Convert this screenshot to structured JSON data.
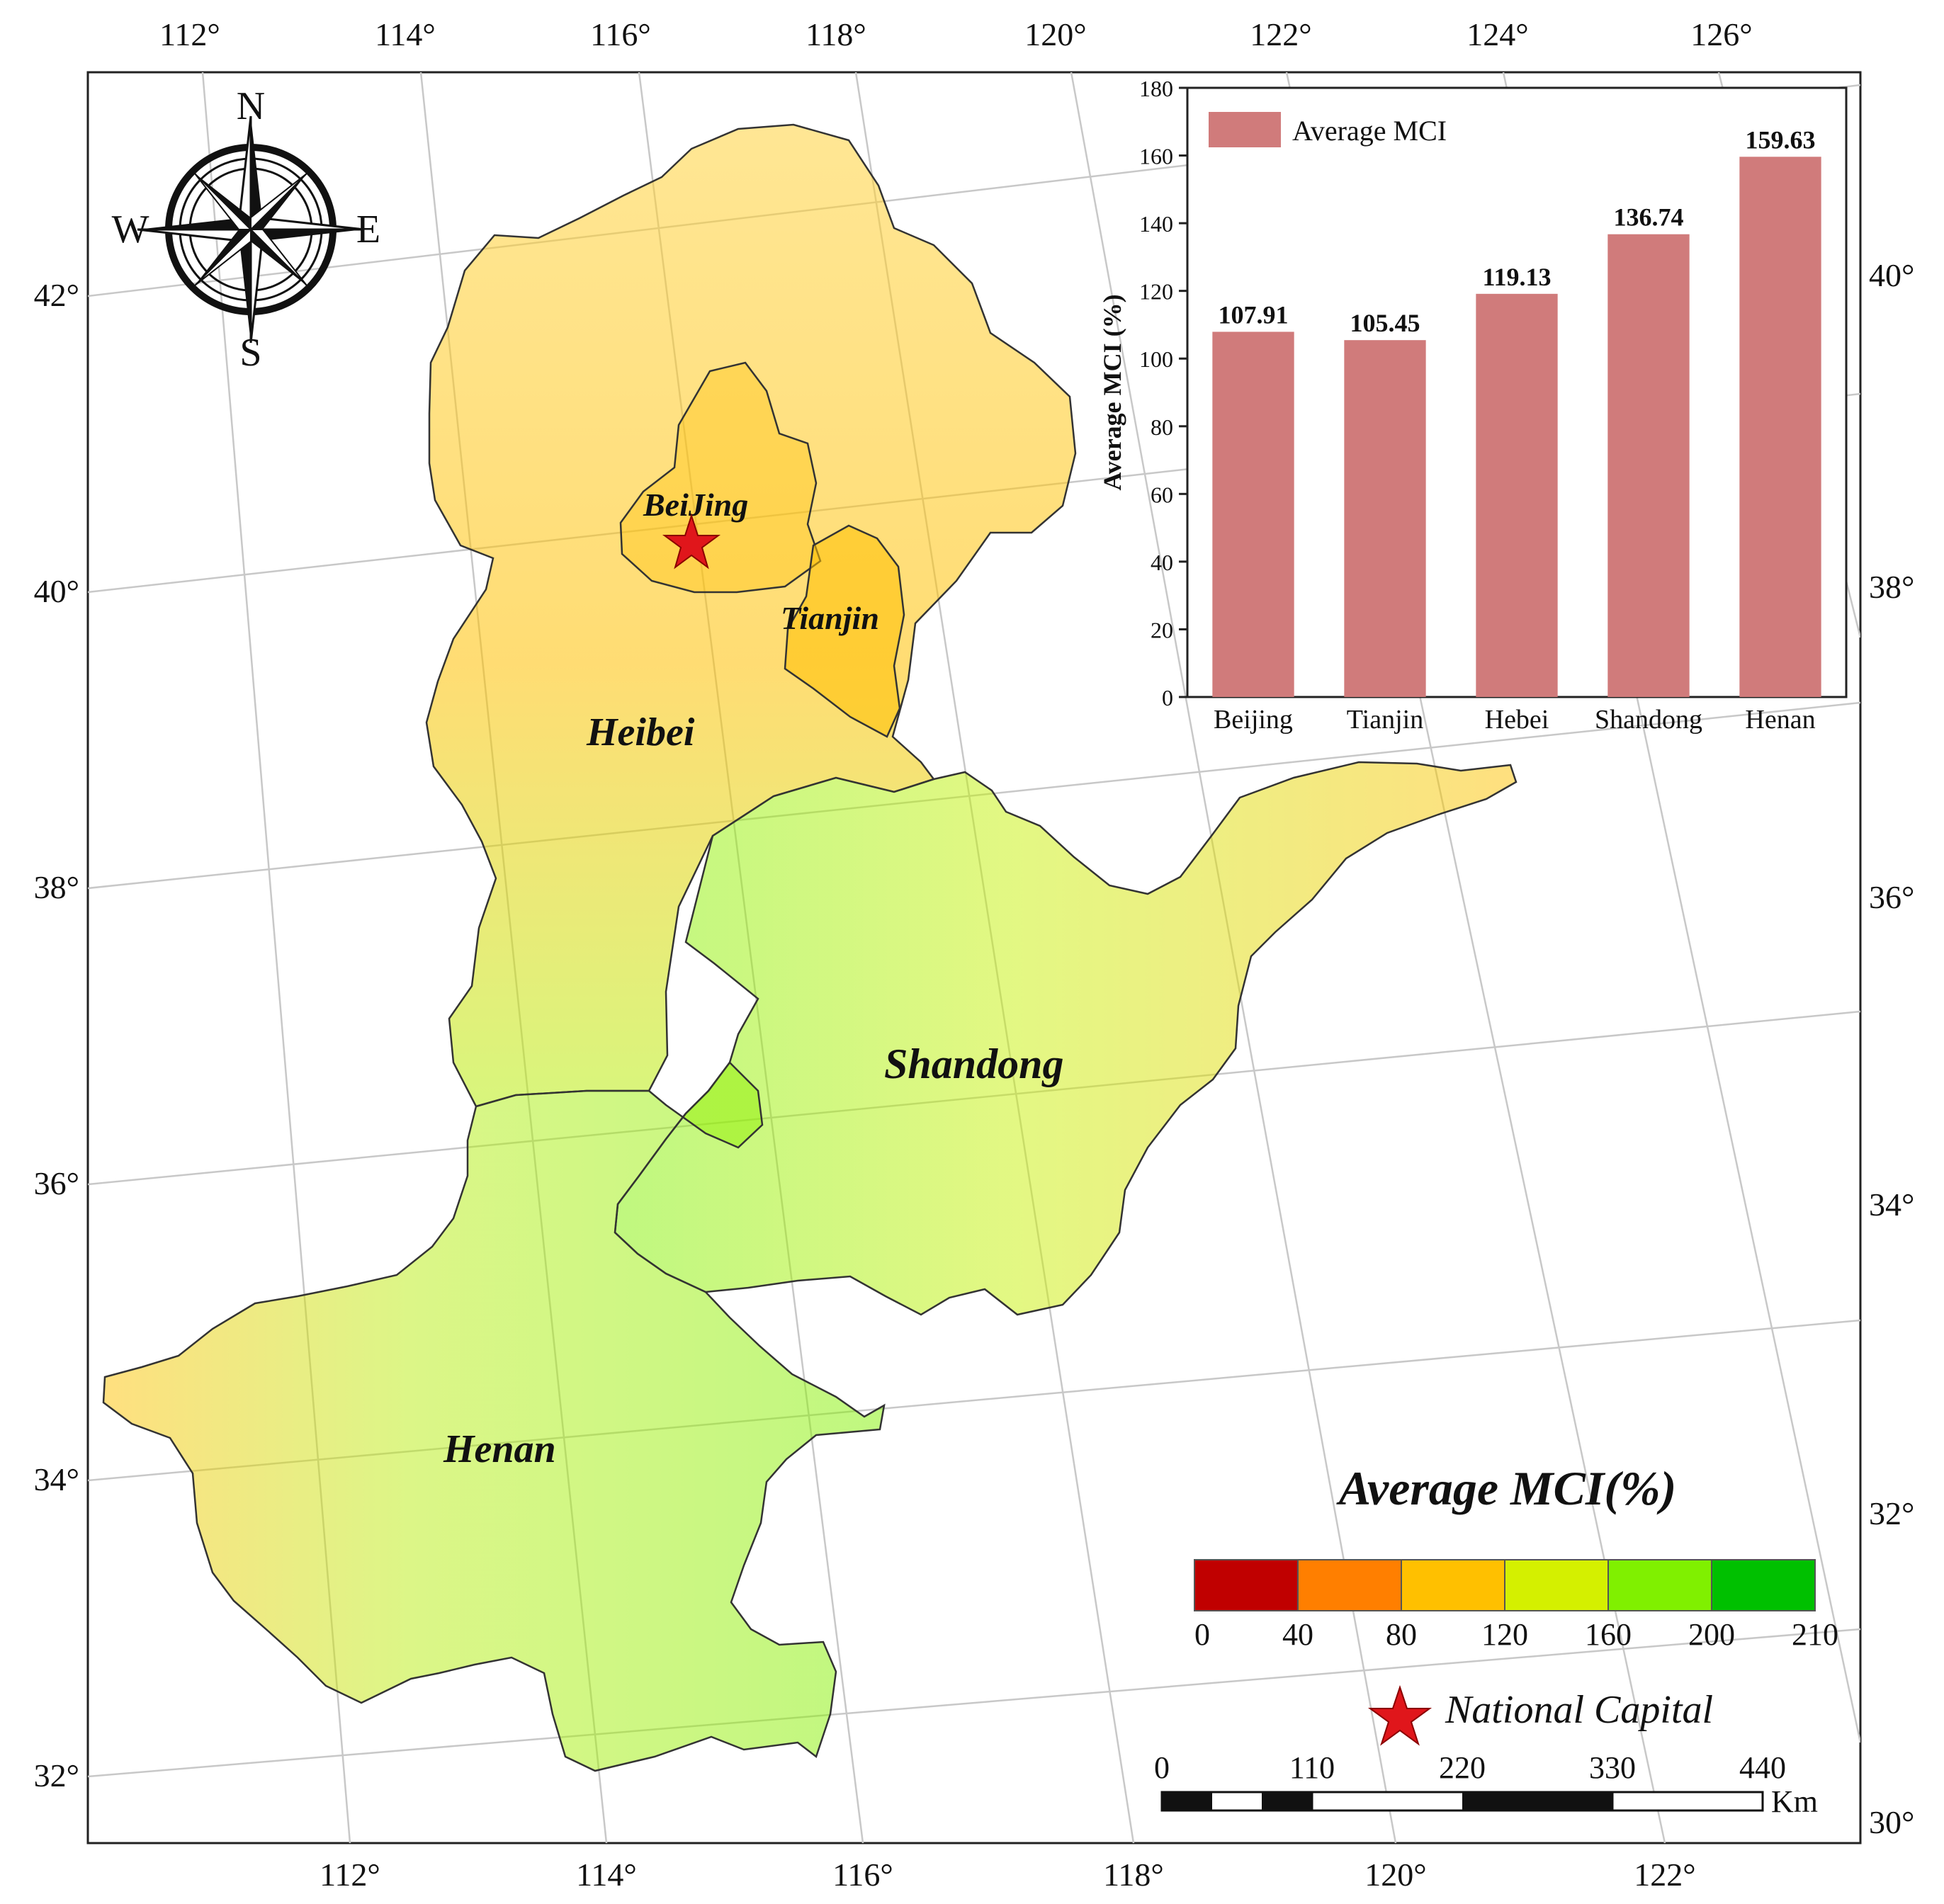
{
  "compass": {
    "n": "N",
    "s": "S",
    "e": "E",
    "w": "W"
  },
  "top_ticks": [
    "112°",
    "114°",
    "116°",
    "118°",
    "120°",
    "122°",
    "124°",
    "126°"
  ],
  "bottom_ticks": [
    "112°",
    "114°",
    "116°",
    "118°",
    "120°",
    "122°"
  ],
  "left_ticks": [
    "42°",
    "40°",
    "38°",
    "36°",
    "34°",
    "32°"
  ],
  "right_ticks": [
    "40°",
    "38°",
    "36°",
    "34°",
    "32°",
    "30°"
  ],
  "provinces": {
    "beijing": "BeiJing",
    "tianjin": "Tianjin",
    "hebei": "Heibei",
    "shandong": "Shandong",
    "henan": "Henan"
  },
  "legend": {
    "title": "Average MCI(%)",
    "class_colors": [
      "#c00000",
      "#ff7f00",
      "#ffc000",
      "#d4f000",
      "#80f000",
      "#00c000"
    ],
    "break_labels": [
      "0",
      "40",
      "80",
      "120",
      "160",
      "200",
      "210"
    ],
    "capital_label": "National Capital"
  },
  "scale_bar": {
    "labels": [
      "0",
      "110",
      "220",
      "330",
      "440"
    ],
    "unit": "Km"
  },
  "colors": {
    "bar": "#d07b7b",
    "capital_star": "#e0161b",
    "boundary": "#333333"
  },
  "chart_data": {
    "type": "bar",
    "title": "",
    "categories": [
      "Beijing",
      "Tianjin",
      "Hebei",
      "Shandong",
      "Henan"
    ],
    "values": [
      107.91,
      105.45,
      119.13,
      136.74,
      159.63
    ],
    "value_labels": [
      "107.91",
      "105.45",
      "119.13",
      "136.74",
      "159.63"
    ],
    "ylabel": "Average MCI (%)",
    "xlabel": "",
    "ylim": [
      0,
      180
    ],
    "yticks": [
      "0",
      "20",
      "40",
      "60",
      "80",
      "100",
      "120",
      "140",
      "160",
      "180"
    ],
    "legend": "Average MCI",
    "legend_position": "top-left"
  }
}
